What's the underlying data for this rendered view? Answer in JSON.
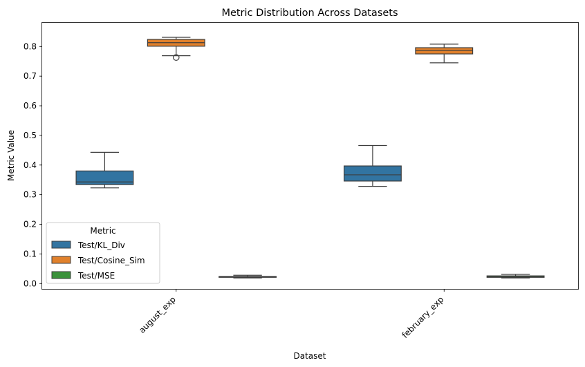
{
  "chart_data": {
    "type": "box",
    "title": "Metric Distribution Across Datasets",
    "xlabel": "Dataset",
    "ylabel": "Metric Value",
    "ylim": [
      -0.018,
      0.88
    ],
    "yticks": [
      0.0,
      0.1,
      0.2,
      0.3,
      0.4,
      0.5,
      0.6,
      0.7,
      0.8
    ],
    "ytick_labels": [
      "0.0",
      "0.1",
      "0.2",
      "0.3",
      "0.4",
      "0.5",
      "0.6",
      "0.7",
      "0.8"
    ],
    "categories": [
      "august_exp",
      "february_exp"
    ],
    "legend": {
      "title": "Metric",
      "position": "lower-left"
    },
    "grid": false,
    "series": [
      {
        "name": "Test/KL_Div",
        "color": "#3274a1",
        "boxes": [
          {
            "whisker_low": 0.323,
            "q1": 0.334,
            "median": 0.343,
            "q3": 0.38,
            "whisker_high": 0.443,
            "outliers": []
          },
          {
            "whisker_low": 0.328,
            "q1": 0.346,
            "median": 0.367,
            "q3": 0.397,
            "whisker_high": 0.466,
            "outliers": []
          }
        ]
      },
      {
        "name": "Test/Cosine_Sim",
        "color": "#e1812c",
        "boxes": [
          {
            "whisker_low": 0.769,
            "q1": 0.801,
            "median": 0.813,
            "q3": 0.824,
            "whisker_high": 0.831,
            "outliers": [
              0.763
            ]
          },
          {
            "whisker_low": 0.745,
            "q1": 0.775,
            "median": 0.787,
            "q3": 0.796,
            "whisker_high": 0.808,
            "outliers": []
          }
        ]
      },
      {
        "name": "Test/MSE",
        "color": "#3a923a",
        "boxes": [
          {
            "whisker_low": 0.019,
            "q1": 0.021,
            "median": 0.022,
            "q3": 0.024,
            "whisker_high": 0.028,
            "outliers": []
          },
          {
            "whisker_low": 0.019,
            "q1": 0.021,
            "median": 0.023,
            "q3": 0.026,
            "whisker_high": 0.031,
            "outliers": []
          }
        ]
      }
    ]
  }
}
